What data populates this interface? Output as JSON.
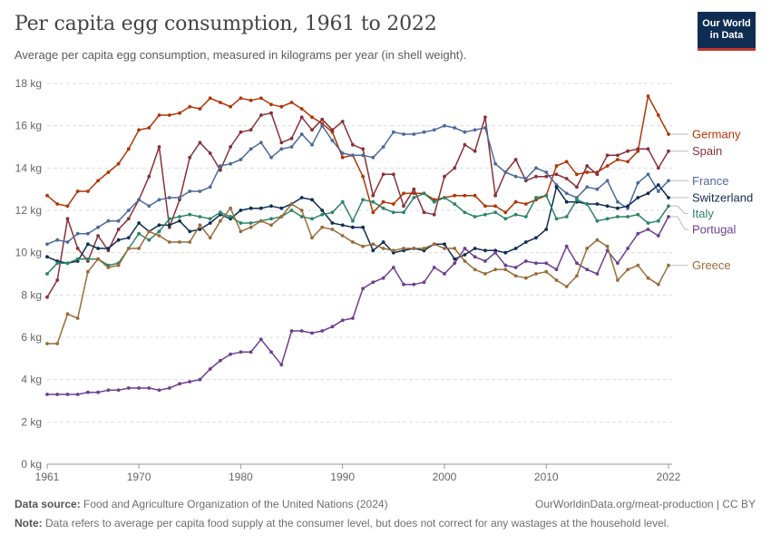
{
  "header": {
    "title": "Per capita egg consumption, 1961 to 2022",
    "subtitle": "Average per capita egg consumption, measured in kilograms per year (in shell weight).",
    "logo_line1": "Our World",
    "logo_line2": "in Data"
  },
  "footer": {
    "source_label": "Data source:",
    "source_text": "Food and Agriculture Organization of the United Nations (2024)",
    "url_text": "OurWorldinData.org/meat-production | CC BY",
    "note_label": "Note:",
    "note_text": "Data refers to average per capita food supply at the consumer level, but does not correct for any wastages at the household level."
  },
  "chart_data": {
    "type": "line",
    "title": "Per capita egg consumption, 1961 to 2022",
    "ylim": [
      0,
      18
    ],
    "xlim": [
      1961,
      2022
    ],
    "y_ticks": [
      0,
      2,
      4,
      6,
      8,
      10,
      12,
      14,
      16,
      18
    ],
    "y_tick_labels": [
      "0 kg",
      "2 kg",
      "4 kg",
      "6 kg",
      "8 kg",
      "10 kg",
      "12 kg",
      "14 kg",
      "16 kg",
      "18 kg"
    ],
    "x_ticks": [
      1961,
      1970,
      1980,
      1990,
      2000,
      2010,
      2022
    ],
    "x_tick_labels": [
      "1961",
      "1970",
      "1980",
      "1990",
      "2000",
      "2010",
      "2022"
    ],
    "grid": "horizontal dashed",
    "legend": "right, labels at line ends",
    "x": [
      1961,
      1962,
      1963,
      1964,
      1965,
      1966,
      1967,
      1968,
      1969,
      1970,
      1971,
      1972,
      1973,
      1974,
      1975,
      1976,
      1977,
      1978,
      1979,
      1980,
      1981,
      1982,
      1983,
      1984,
      1985,
      1986,
      1987,
      1988,
      1989,
      1990,
      1991,
      1992,
      1993,
      1994,
      1995,
      1996,
      1997,
      1998,
      1999,
      2000,
      2001,
      2002,
      2003,
      2004,
      2005,
      2006,
      2007,
      2008,
      2009,
      2010,
      2011,
      2012,
      2013,
      2014,
      2015,
      2016,
      2017,
      2018,
      2019,
      2020,
      2021,
      2022
    ],
    "series": [
      {
        "name": "Germany",
        "color": "#b13507",
        "values": [
          12.7,
          12.3,
          12.2,
          12.9,
          12.9,
          13.4,
          13.8,
          14.2,
          14.9,
          15.8,
          15.9,
          16.5,
          16.5,
          16.6,
          16.9,
          16.8,
          17.3,
          17.1,
          16.9,
          17.3,
          17.2,
          17.3,
          17.0,
          16.9,
          17.1,
          16.8,
          16.4,
          16.1,
          15.7,
          14.5,
          14.6,
          13.6,
          11.9,
          12.4,
          12.3,
          12.8,
          12.8,
          12.8,
          12.5,
          12.6,
          12.7,
          12.7,
          12.7,
          12.2,
          12.2,
          11.9,
          12.4,
          12.3,
          12.5,
          12.7,
          14.1,
          14.3,
          13.7,
          13.8,
          13.8,
          14.1,
          14.4,
          14.3,
          14.8,
          17.4,
          16.5,
          15.6
        ]
      },
      {
        "name": "Spain",
        "color": "#883039",
        "values": [
          7.9,
          8.7,
          11.6,
          10.2,
          9.6,
          10.8,
          10.1,
          11.1,
          11.6,
          12.5,
          13.6,
          15.0,
          11.2,
          12.5,
          14.5,
          15.2,
          14.7,
          13.9,
          15.0,
          15.7,
          15.8,
          16.5,
          16.6,
          15.2,
          15.4,
          16.4,
          15.8,
          16.3,
          15.8,
          16.2,
          15.1,
          14.9,
          12.7,
          13.7,
          13.7,
          12.2,
          13.0,
          11.9,
          11.8,
          13.6,
          14.0,
          15.1,
          14.8,
          16.4,
          12.7,
          13.8,
          14.4,
          13.4,
          13.6,
          13.6,
          13.7,
          13.5,
          13.1,
          14.1,
          13.7,
          14.6,
          14.6,
          14.8,
          14.9,
          14.9,
          14.0,
          14.8
        ]
      },
      {
        "name": "France",
        "color": "#4c6a9c",
        "values": [
          10.4,
          10.6,
          10.5,
          10.9,
          10.9,
          11.2,
          11.5,
          11.5,
          12.0,
          12.5,
          12.2,
          12.5,
          12.6,
          12.6,
          12.9,
          12.9,
          13.1,
          14.1,
          14.2,
          14.4,
          14.9,
          15.2,
          14.5,
          14.9,
          15.0,
          15.6,
          15.1,
          16.0,
          15.3,
          14.7,
          14.6,
          14.6,
          14.5,
          15.0,
          15.7,
          15.6,
          15.6,
          15.7,
          15.8,
          16.0,
          15.9,
          15.7,
          15.8,
          15.9,
          14.2,
          13.8,
          13.6,
          13.5,
          14.0,
          13.8,
          13.2,
          12.8,
          12.6,
          13.1,
          13.0,
          13.4,
          12.4,
          12.1,
          13.3,
          13.7,
          12.9,
          13.4
        ]
      },
      {
        "name": "Switzerland",
        "color": "#0f2d52",
        "values": [
          9.8,
          9.6,
          9.5,
          9.6,
          10.4,
          10.2,
          10.2,
          10.6,
          10.7,
          11.4,
          11.0,
          11.3,
          11.3,
          11.5,
          11.0,
          11.1,
          11.4,
          11.8,
          11.6,
          12.0,
          12.1,
          12.1,
          12.2,
          12.1,
          12.3,
          12.6,
          12.5,
          12.0,
          11.4,
          11.3,
          11.2,
          11.2,
          10.1,
          10.5,
          10.0,
          10.1,
          10.2,
          10.1,
          10.4,
          10.4,
          9.7,
          9.9,
          10.2,
          10.1,
          10.1,
          10.0,
          10.2,
          10.5,
          10.7,
          11.1,
          13.1,
          12.4,
          12.4,
          12.3,
          12.3,
          12.2,
          12.1,
          12.2,
          12.6,
          12.8,
          13.2,
          12.6
        ]
      },
      {
        "name": "Italy",
        "color": "#2c8465",
        "values": [
          9.0,
          9.5,
          9.5,
          9.7,
          9.7,
          9.7,
          9.4,
          9.5,
          10.2,
          10.9,
          10.6,
          11.0,
          11.6,
          11.7,
          11.8,
          11.7,
          11.6,
          11.9,
          11.7,
          11.4,
          11.4,
          11.5,
          11.6,
          11.7,
          12.0,
          11.7,
          11.6,
          11.8,
          11.9,
          12.4,
          11.5,
          12.5,
          12.4,
          12.1,
          11.9,
          11.9,
          12.6,
          12.8,
          12.4,
          12.6,
          12.3,
          11.9,
          11.7,
          11.8,
          11.9,
          11.6,
          11.8,
          11.7,
          12.6,
          12.7,
          11.6,
          11.7,
          12.5,
          12.3,
          11.5,
          11.6,
          11.7,
          11.7,
          11.8,
          11.4,
          11.5,
          12.2
        ]
      },
      {
        "name": "Portugal",
        "color": "#6d3e91",
        "values": [
          3.3,
          3.3,
          3.3,
          3.3,
          3.4,
          3.4,
          3.5,
          3.5,
          3.6,
          3.6,
          3.6,
          3.5,
          3.6,
          3.8,
          3.9,
          4.0,
          4.5,
          4.9,
          5.2,
          5.3,
          5.3,
          5.9,
          5.3,
          4.7,
          6.3,
          6.3,
          6.2,
          6.3,
          6.5,
          6.8,
          6.9,
          8.3,
          8.6,
          8.8,
          9.3,
          8.5,
          8.5,
          8.6,
          9.3,
          9.0,
          9.5,
          10.2,
          9.8,
          9.6,
          10.0,
          9.4,
          9.3,
          9.6,
          9.5,
          9.5,
          9.2,
          10.3,
          9.5,
          9.2,
          9.0,
          10.1,
          9.5,
          10.2,
          10.9,
          11.1,
          10.8,
          11.7
        ]
      },
      {
        "name": "Greece",
        "color": "#986d39",
        "values": [
          5.7,
          5.7,
          7.1,
          6.9,
          9.1,
          9.7,
          9.3,
          9.4,
          10.2,
          10.2,
          11.0,
          10.8,
          10.5,
          10.5,
          10.5,
          11.3,
          10.7,
          11.5,
          12.1,
          11.0,
          11.2,
          11.5,
          11.3,
          11.7,
          12.3,
          12.0,
          10.7,
          11.2,
          11.1,
          10.8,
          10.5,
          10.3,
          10.4,
          10.2,
          10.1,
          10.2,
          10.2,
          10.2,
          10.4,
          10.2,
          10.2,
          9.6,
          9.2,
          9.0,
          9.2,
          9.2,
          8.9,
          8.8,
          9.0,
          9.1,
          8.7,
          8.4,
          8.9,
          10.2,
          10.6,
          10.3,
          8.7,
          9.2,
          9.4,
          8.8,
          8.5,
          9.4
        ]
      }
    ]
  }
}
